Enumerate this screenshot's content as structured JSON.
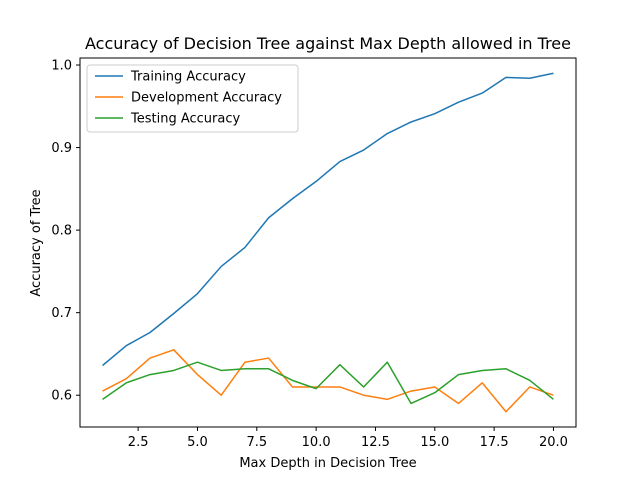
{
  "chart_data": {
    "type": "line",
    "title": "Accuracy of Decision Tree against Max Depth allowed in Tree",
    "xlabel": "Max Depth in Decision Tree",
    "ylabel": "Accuracy of Tree",
    "xlim": [
      0.05,
      20.95
    ],
    "ylim": [
      0.5615,
      1.0085
    ],
    "xticks": [
      2.5,
      5.0,
      7.5,
      10.0,
      12.5,
      15.0,
      17.5,
      20.0
    ],
    "xtick_labels": [
      "2.5",
      "5.0",
      "7.5",
      "10.0",
      "12.5",
      "15.0",
      "17.5",
      "20.0"
    ],
    "yticks": [
      0.6,
      0.7,
      0.8,
      0.9,
      1.0
    ],
    "ytick_labels": [
      "0.6",
      "0.7",
      "0.8",
      "0.9",
      "1.0"
    ],
    "grid": false,
    "legend_position": "top-left",
    "x": [
      1,
      2,
      3,
      4,
      5,
      6,
      7,
      8,
      9,
      10,
      11,
      12,
      13,
      14,
      15,
      16,
      17,
      18,
      19,
      20
    ],
    "series": [
      {
        "name": "Training Accuracy",
        "color": "#1f77b4",
        "values": [
          0.636,
          0.66,
          0.676,
          0.699,
          0.723,
          0.756,
          0.779,
          0.815,
          0.838,
          0.859,
          0.883,
          0.897,
          0.917,
          0.931,
          0.941,
          0.955,
          0.966,
          0.985,
          0.984,
          0.99
        ]
      },
      {
        "name": "Development Accuracy",
        "color": "#ff7f0e",
        "values": [
          0.605,
          0.62,
          0.645,
          0.655,
          0.625,
          0.6,
          0.64,
          0.645,
          0.61,
          0.61,
          0.61,
          0.6,
          0.595,
          0.605,
          0.61,
          0.59,
          0.615,
          0.58,
          0.61,
          0.6
        ]
      },
      {
        "name": "Testing Accuracy",
        "color": "#2ca02c",
        "values": [
          0.595,
          0.615,
          0.625,
          0.63,
          0.64,
          0.63,
          0.632,
          0.632,
          0.618,
          0.608,
          0.637,
          0.61,
          0.64,
          0.59,
          0.603,
          0.625,
          0.63,
          0.632,
          0.618,
          0.595
        ]
      }
    ]
  }
}
